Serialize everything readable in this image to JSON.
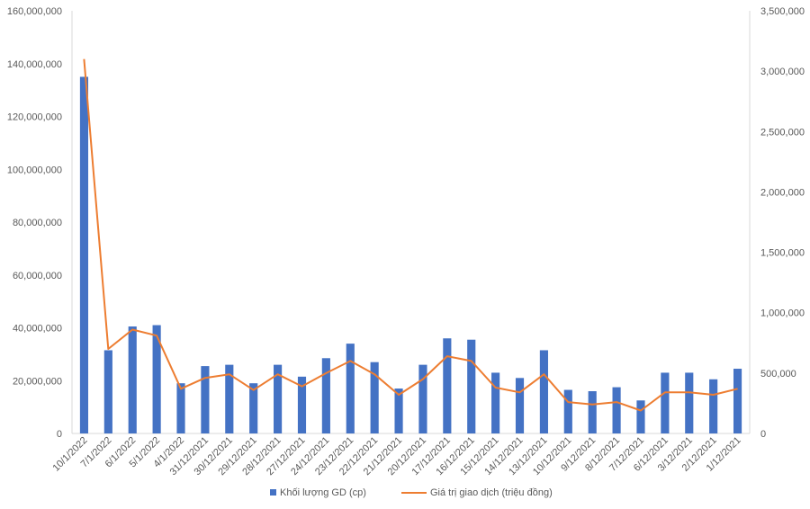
{
  "chart_data": {
    "type": "bar+line",
    "title": "",
    "xlabel": "",
    "ylabel": "",
    "ylabel_right": "",
    "categories": [
      "10/1/2022",
      "7/1/2022",
      "6/1/2022",
      "5/1/2022",
      "4/1/2022",
      "31/12/2021",
      "30/12/2021",
      "29/12/2021",
      "28/12/2021",
      "27/12/2021",
      "24/12/2021",
      "23/12/2021",
      "22/12/2021",
      "21/12/2021",
      "20/12/2021",
      "17/12/2021",
      "16/12/2021",
      "15/12/2021",
      "14/12/2021",
      "13/12/2021",
      "10/12/2021",
      "9/12/2021",
      "8/12/2021",
      "7/12/2021",
      "6/12/2021",
      "3/12/2021",
      "2/12/2021",
      "1/12/2021"
    ],
    "series": [
      {
        "name": "Khối lượng GD (cp)",
        "type": "bar",
        "axis": "left",
        "color": "#4472C4",
        "values": [
          135000000,
          31500000,
          40500000,
          41000000,
          19000000,
          25500000,
          26000000,
          19000000,
          26000000,
          21500000,
          28500000,
          34000000,
          27000000,
          17000000,
          26000000,
          36000000,
          35500000,
          23000000,
          21000000,
          31500000,
          16500000,
          16000000,
          17500000,
          12500000,
          23000000,
          23000000,
          20500000,
          24500000
        ]
      },
      {
        "name": "Giá trị giao  dịch (triệu đồng)",
        "type": "line",
        "axis": "right",
        "color": "#ED7D31",
        "values": [
          3100000,
          700000,
          860000,
          810000,
          370000,
          460000,
          490000,
          360000,
          490000,
          390000,
          500000,
          600000,
          490000,
          320000,
          450000,
          640000,
          600000,
          380000,
          340000,
          490000,
          260000,
          240000,
          260000,
          190000,
          340000,
          340000,
          320000,
          370000
        ]
      }
    ],
    "ylim": [
      0,
      160000000
    ],
    "yticks": [
      "0",
      "20,000,000",
      "40,000,000",
      "60,000,000",
      "80,000,000",
      "100,000,000",
      "120,000,000",
      "140,000,000",
      "160,000,000"
    ],
    "ylim_right": [
      0,
      3500000
    ],
    "yticks_right": [
      "0",
      "500,000",
      "1,000,000",
      "1,500,000",
      "2,000,000",
      "2,500,000",
      "3,000,000",
      "3,500,000"
    ],
    "grid": false,
    "legend_position": "bottom"
  }
}
